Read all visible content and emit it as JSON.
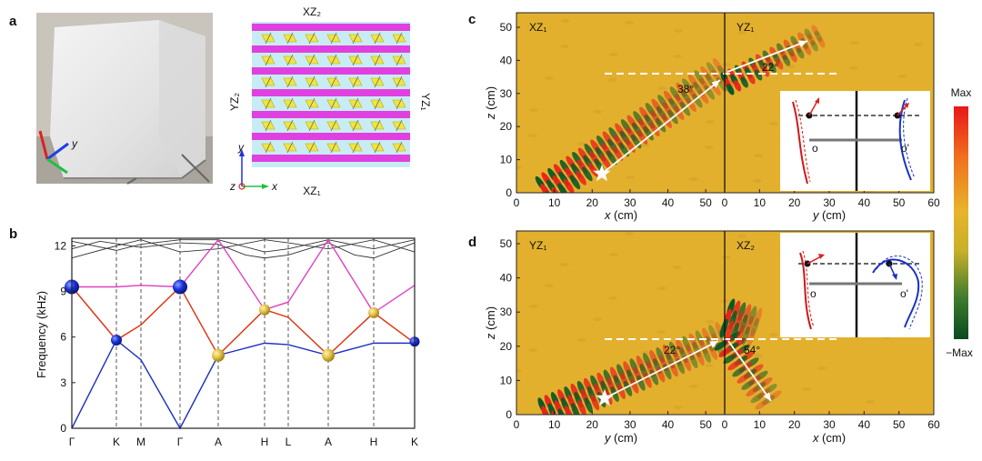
{
  "panels": {
    "a": "a",
    "b": "b",
    "c": "c",
    "d": "d"
  },
  "panel_a": {
    "photo_axis_y": "y",
    "schematic": {
      "top": "XZ₂",
      "bottom": "XZ₁",
      "left": "YZ₂",
      "right": "YZ₁",
      "axis_y": "y",
      "axis_z": "z",
      "axis_x": "x"
    },
    "colors": {
      "rod": "#e040e0",
      "block": "#f0e640",
      "bg": "#c8ecf4"
    }
  },
  "panel_b": {
    "ylabel": "Frequency (kHz)",
    "yticks": [
      "0",
      "3",
      "6",
      "9",
      "12"
    ],
    "xticks": [
      "Γ",
      "K",
      "M",
      "Γ",
      "A",
      "H",
      "L",
      "A",
      "H",
      "K"
    ],
    "colors": {
      "band1": "#2030c0",
      "band2": "#e03010",
      "band3": "#e040c0",
      "upper": "#333333",
      "sphere_blue": "#1428d0",
      "sphere_gold": "#e0c040"
    }
  },
  "panel_c": {
    "left_label": "XZ₁",
    "right_label": "YZ₁",
    "angle1": "38°",
    "angle2": "22°",
    "ylabel_pre": "z",
    "ylabel_post": " (cm)",
    "xlabel_left_pre": "x",
    "xlabel_left_post": " (cm)",
    "xlabel_right_pre": "y",
    "xlabel_right_post": " (cm)",
    "yticks": [
      "0",
      "10",
      "20",
      "30",
      "40",
      "50"
    ],
    "xticks_left": [
      "0",
      "10",
      "20",
      "30",
      "40",
      "50"
    ],
    "xticks_right": [
      "0",
      "10",
      "20",
      "30",
      "40",
      "50",
      "60"
    ],
    "inset_o": "o",
    "inset_o2": "o'"
  },
  "panel_d": {
    "left_label": "YZ₁",
    "right_label": "XZ₂",
    "angle1": "22°",
    "angle2": "54°",
    "ylabel_pre": "z",
    "ylabel_post": " (cm)",
    "xlabel_left_pre": "y",
    "xlabel_left_post": " (cm)",
    "xlabel_right_pre": "x",
    "xlabel_right_post": " (cm)",
    "yticks": [
      "0",
      "10",
      "20",
      "30",
      "40",
      "50"
    ],
    "xticks_left": [
      "0",
      "10",
      "20",
      "30",
      "40",
      "50"
    ],
    "xticks_right": [
      "0",
      "10",
      "20",
      "30",
      "40",
      "50",
      "60"
    ],
    "inset_o": "o",
    "inset_o2": "o'"
  },
  "colorbar": {
    "max": "Max",
    "min": "−Max",
    "colors": [
      "#e81818",
      "#f07a20",
      "#e8b42a",
      "#c8b02a",
      "#3a7a2a",
      "#0a4a20"
    ]
  },
  "field_colors": {
    "bg": "#e3b02e",
    "red": "#e8241a",
    "green": "#0c5a26"
  }
}
